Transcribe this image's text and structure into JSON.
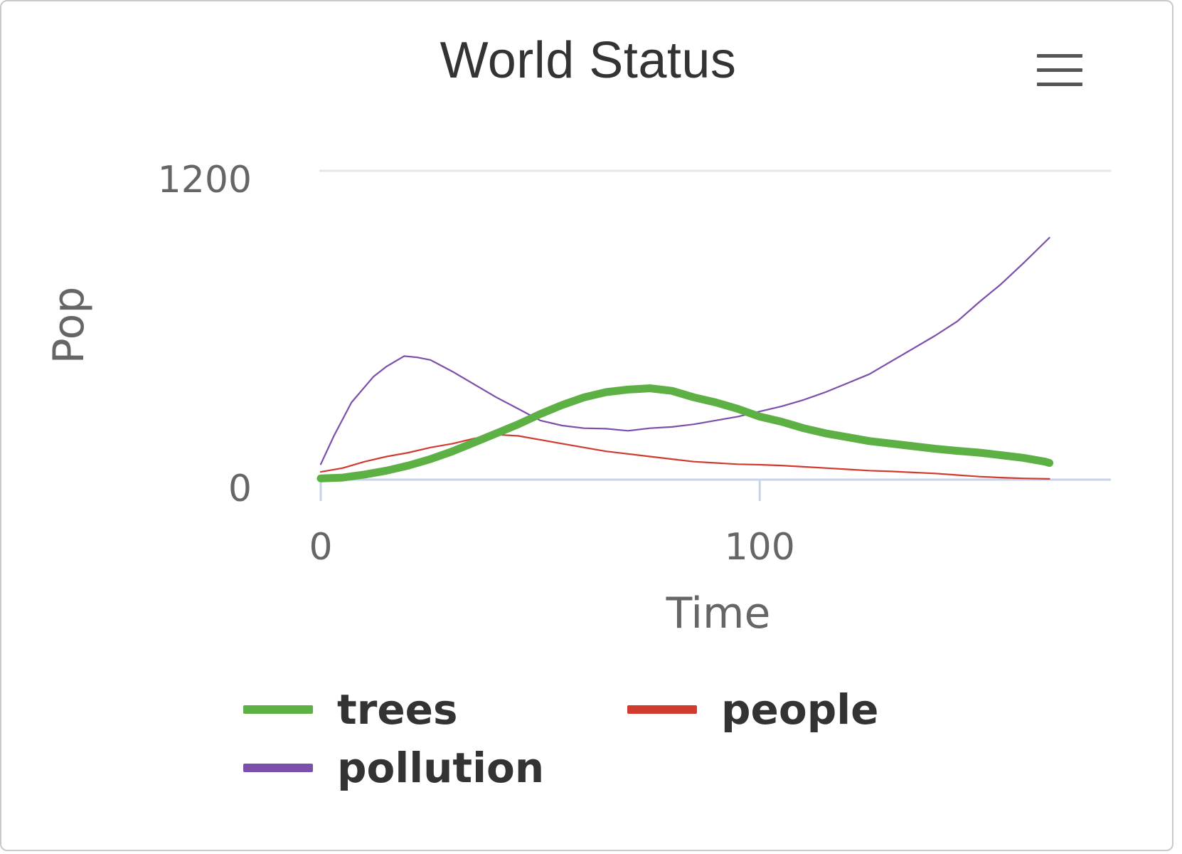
{
  "chart_data": {
    "type": "line",
    "title": "World Status",
    "xlabel": "Time",
    "ylabel": "Pop",
    "xlim": [
      0,
      180
    ],
    "ylim": [
      0,
      1200
    ],
    "x_ticks": [
      0,
      100
    ],
    "y_ticks": [
      0,
      1200
    ],
    "grid": "horizontal",
    "legend_position": "bottom",
    "series": [
      {
        "name": "trees",
        "color": "#5db044",
        "line_weight": "bold",
        "points": [
          [
            0,
            5
          ],
          [
            5,
            8
          ],
          [
            10,
            20
          ],
          [
            15,
            35
          ],
          [
            20,
            55
          ],
          [
            25,
            80
          ],
          [
            30,
            110
          ],
          [
            35,
            145
          ],
          [
            40,
            180
          ],
          [
            45,
            215
          ],
          [
            50,
            255
          ],
          [
            55,
            290
          ],
          [
            60,
            320
          ],
          [
            65,
            340
          ],
          [
            70,
            350
          ],
          [
            75,
            355
          ],
          [
            80,
            345
          ],
          [
            85,
            320
          ],
          [
            90,
            300
          ],
          [
            95,
            275
          ],
          [
            100,
            245
          ],
          [
            105,
            225
          ],
          [
            110,
            200
          ],
          [
            115,
            180
          ],
          [
            120,
            165
          ],
          [
            125,
            150
          ],
          [
            130,
            140
          ],
          [
            135,
            130
          ],
          [
            140,
            120
          ],
          [
            145,
            112
          ],
          [
            150,
            105
          ],
          [
            155,
            95
          ],
          [
            160,
            85
          ],
          [
            165,
            70
          ],
          [
            166,
            65
          ]
        ]
      },
      {
        "name": "people",
        "color": "#d03b2e",
        "line_weight": "thin",
        "points": [
          [
            0,
            30
          ],
          [
            5,
            45
          ],
          [
            10,
            70
          ],
          [
            15,
            90
          ],
          [
            20,
            105
          ],
          [
            25,
            125
          ],
          [
            30,
            140
          ],
          [
            35,
            160
          ],
          [
            40,
            175
          ],
          [
            45,
            170
          ],
          [
            50,
            155
          ],
          [
            55,
            140
          ],
          [
            60,
            125
          ],
          [
            65,
            110
          ],
          [
            70,
            100
          ],
          [
            75,
            90
          ],
          [
            80,
            80
          ],
          [
            85,
            70
          ],
          [
            90,
            65
          ],
          [
            95,
            60
          ],
          [
            100,
            58
          ],
          [
            105,
            55
          ],
          [
            110,
            50
          ],
          [
            115,
            45
          ],
          [
            120,
            40
          ],
          [
            125,
            35
          ],
          [
            130,
            32
          ],
          [
            135,
            28
          ],
          [
            140,
            24
          ],
          [
            145,
            18
          ],
          [
            150,
            12
          ],
          [
            155,
            8
          ],
          [
            160,
            5
          ],
          [
            166,
            3
          ]
        ]
      },
      {
        "name": "pollution",
        "color": "#7b4faa",
        "line_weight": "thin",
        "points": [
          [
            0,
            60
          ],
          [
            3,
            170
          ],
          [
            7,
            300
          ],
          [
            12,
            400
          ],
          [
            15,
            440
          ],
          [
            19,
            480
          ],
          [
            22,
            475
          ],
          [
            25,
            465
          ],
          [
            30,
            420
          ],
          [
            35,
            370
          ],
          [
            40,
            320
          ],
          [
            45,
            275
          ],
          [
            50,
            230
          ],
          [
            55,
            210
          ],
          [
            60,
            200
          ],
          [
            65,
            198
          ],
          [
            70,
            190
          ],
          [
            75,
            200
          ],
          [
            80,
            205
          ],
          [
            85,
            215
          ],
          [
            90,
            230
          ],
          [
            95,
            245
          ],
          [
            100,
            265
          ],
          [
            105,
            285
          ],
          [
            110,
            310
          ],
          [
            115,
            340
          ],
          [
            120,
            375
          ],
          [
            125,
            410
          ],
          [
            130,
            460
          ],
          [
            135,
            510
          ],
          [
            140,
            560
          ],
          [
            145,
            615
          ],
          [
            150,
            690
          ],
          [
            155,
            760
          ],
          [
            160,
            840
          ],
          [
            163,
            890
          ],
          [
            166,
            940
          ]
        ]
      }
    ]
  }
}
